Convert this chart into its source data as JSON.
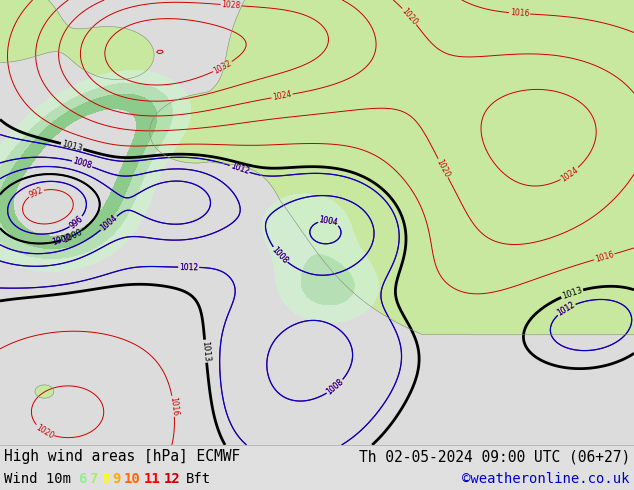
{
  "title_left": "High wind areas [hPa] ECMWF",
  "title_right": "Th 02-05-2024 09:00 UTC (06+27)",
  "wind_label": "Wind 10m",
  "bft_label": "Bft",
  "bft_numbers": [
    "6",
    "7",
    "8",
    "9",
    "10",
    "11",
    "12"
  ],
  "bft_colors": [
    "#90ee90",
    "#adeb6e",
    "#ffff00",
    "#ffaa00",
    "#ff6600",
    "#ff0000",
    "#cc0000"
  ],
  "copyright": "©weatheronline.co.uk",
  "copyright_color": "#0000cc",
  "bg_color": "#e0e0e0",
  "map_bg": "#dcdcdc",
  "land_color": "#c8e8a0",
  "sea_color": "#dcdcdc",
  "high_wind_color": "#b0e8b0",
  "title_fontsize": 10.5,
  "label_fontsize": 10,
  "fig_width": 6.34,
  "fig_height": 4.9,
  "dpi": 100
}
